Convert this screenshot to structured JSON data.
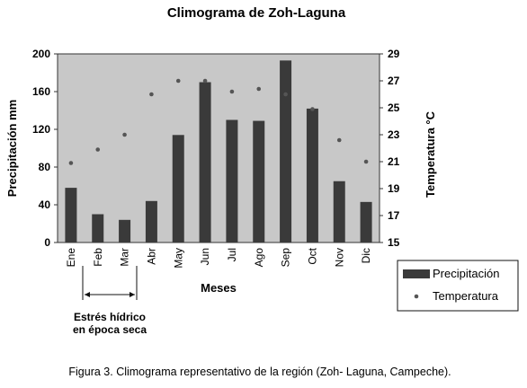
{
  "chart_data": {
    "type": "bar",
    "title": "Climograma de Zoh-Laguna",
    "xlabel": "Meses",
    "ylabel": "Precipitación mm",
    "y2label": "Temperatura °C",
    "categories": [
      "Ene",
      "Feb",
      "Mar",
      "Abr",
      "May",
      "Jun",
      "Jul",
      "Ago",
      "Sep",
      "Oct",
      "Nov",
      "Dic"
    ],
    "series": [
      {
        "name": "Precipitación",
        "type": "bar",
        "axis": "left",
        "color": "#3a3a3a",
        "values": [
          58,
          30,
          24,
          44,
          114,
          170,
          130,
          129,
          193,
          142,
          65,
          43
        ]
      },
      {
        "name": "Temperatura",
        "type": "scatter",
        "axis": "right",
        "color": "#555555",
        "values": [
          20.9,
          21.9,
          23.0,
          26.0,
          27.0,
          27.0,
          26.2,
          26.4,
          26.0,
          24.9,
          22.6,
          21.0
        ]
      }
    ],
    "ylim": [
      0,
      200
    ],
    "yticks": [
      "0",
      "40",
      "80",
      "120",
      "160",
      "200"
    ],
    "y2lim": [
      15,
      29
    ],
    "y2ticks": [
      "15",
      "17",
      "19",
      "21",
      "23",
      "25",
      "27",
      "29"
    ],
    "plot_background": "#c8c8c8",
    "legend": {
      "position": "bottom-right"
    },
    "grid": false
  },
  "annotation": {
    "line1": "Estrés hídrico",
    "line2": "en época seca",
    "span": [
      "Feb",
      "Mar"
    ]
  },
  "caption": "Figura 3. Climograma representativo de la región (Zoh- Laguna, Campeche)."
}
